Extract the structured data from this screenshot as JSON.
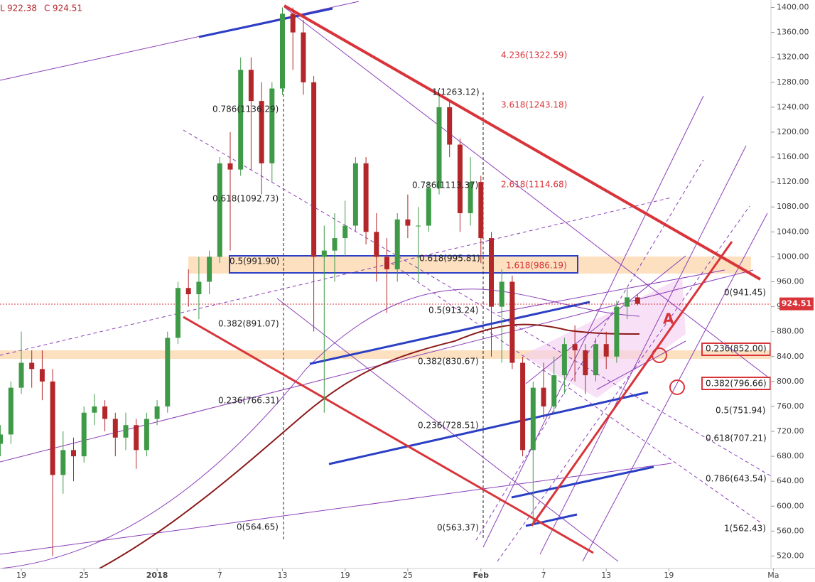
{
  "chart_data": {
    "type": "candlestick",
    "readout": [
      {
        "label": "L",
        "value": 922.38
      },
      {
        "label": "C",
        "value": 924.51
      }
    ],
    "categories": [
      null,
      null,
      "19",
      null,
      null,
      null,
      null,
      null,
      "25",
      null,
      null,
      null,
      null,
      null,
      null,
      "2018",
      null,
      null,
      null,
      null,
      null,
      "7",
      null,
      null,
      null,
      null,
      null,
      "13",
      null,
      null,
      null,
      null,
      null,
      "19",
      null,
      null,
      null,
      null,
      null,
      "25",
      null,
      null,
      null,
      null,
      null,
      null,
      "Feb",
      null,
      null,
      null,
      null,
      null,
      "7",
      null,
      null,
      null,
      null,
      null,
      "13",
      null,
      null,
      null,
      null,
      null,
      "19",
      null,
      null,
      null,
      null,
      null,
      null,
      null,
      null,
      null,
      "Ma"
    ],
    "open": [
      700,
      715,
      790,
      830,
      820,
      800,
      650,
      690,
      680,
      750,
      760,
      740,
      710,
      730,
      690,
      740,
      760,
      870,
      950,
      940,
      960,
      1000,
      1150,
      1140,
      1300,
      1250,
      1150,
      1270,
      1390,
      1360,
      1280,
      1000,
      1010,
      1030,
      1050,
      1150,
      1040,
      1000,
      980,
      1060,
      1050,
      1050,
      1110,
      1240,
      1180,
      1070,
      1120,
      1030,
      920,
      960,
      830,
      690,
      790,
      760,
      810,
      860,
      850,
      810,
      860,
      840,
      920,
      935,
      null,
      null,
      null,
      null,
      null,
      null,
      null,
      null,
      null,
      null,
      null,
      null,
      null
    ],
    "high": [
      730,
      800,
      880,
      850,
      850,
      820,
      720,
      710,
      760,
      780,
      770,
      750,
      750,
      740,
      750,
      770,
      880,
      960,
      980,
      1000,
      1010,
      1160,
      1200,
      1320,
      1320,
      1280,
      1280,
      1400,
      1400,
      1380,
      1290,
      1050,
      1070,
      1090,
      1160,
      1160,
      1070,
      1030,
      1070,
      1100,
      1080,
      1120,
      1260,
      1250,
      1190,
      1160,
      1130,
      1040,
      980,
      970,
      840,
      800,
      830,
      840,
      870,
      890,
      860,
      870,
      880,
      930,
      950,
      940,
      null,
      null,
      null,
      null,
      null,
      null,
      null,
      null,
      null,
      null,
      null,
      null,
      null
    ],
    "low": [
      680,
      700,
      780,
      790,
      770,
      520,
      620,
      640,
      670,
      730,
      720,
      680,
      690,
      660,
      680,
      730,
      750,
      860,
      920,
      900,
      940,
      990,
      1010,
      1130,
      1140,
      1100,
      1120,
      1260,
      1300,
      1260,
      880,
      750,
      960,
      1000,
      1040,
      1020,
      960,
      910,
      960,
      1030,
      960,
      1040,
      1100,
      1160,
      1040,
      1050,
      990,
      840,
      830,
      820,
      680,
      570,
      740,
      750,
      780,
      800,
      780,
      800,
      820,
      830,
      900,
      922.38,
      null,
      null,
      null,
      null,
      null,
      null,
      null,
      null,
      null,
      null,
      null,
      null,
      null
    ],
    "close": [
      715,
      790,
      830,
      820,
      800,
      650,
      690,
      680,
      750,
      760,
      740,
      710,
      730,
      690,
      740,
      760,
      870,
      950,
      940,
      960,
      1000,
      1150,
      1140,
      1300,
      1250,
      1150,
      1270,
      1390,
      1360,
      1280,
      1000,
      1010,
      1030,
      1050,
      1150,
      1040,
      1000,
      980,
      1060,
      1050,
      1050,
      1110,
      1240,
      1180,
      1070,
      1120,
      1030,
      920,
      960,
      830,
      690,
      790,
      760,
      810,
      860,
      850,
      810,
      860,
      840,
      920,
      935,
      924.51,
      null,
      null,
      null,
      null,
      null,
      null,
      null,
      null,
      null,
      null,
      null,
      null,
      null
    ],
    "up_color": "#3f9a48",
    "down_color": "#b3262a",
    "last_price": 924.51,
    "ylim": [
      500,
      1412
    ],
    "yticks": [
      {
        "value": 520,
        "label": "520.00"
      },
      {
        "value": 560,
        "label": "560.00"
      },
      {
        "value": 600,
        "label": "600.00"
      },
      {
        "value": 640,
        "label": "640.00"
      },
      {
        "value": 680,
        "label": "680.00"
      },
      {
        "value": 720,
        "label": "720.00"
      },
      {
        "value": 760,
        "label": "760.00"
      },
      {
        "value": 800,
        "label": "800.00"
      },
      {
        "value": 840,
        "label": "840.00"
      },
      {
        "value": 880,
        "label": "880.00"
      },
      {
        "value": 920,
        "label": "920.00"
      },
      {
        "value": 960,
        "label": "960.00"
      },
      {
        "value": 1000,
        "label": "1000.00"
      },
      {
        "value": 1040,
        "label": "1040.00"
      },
      {
        "value": 1080,
        "label": "1080.00"
      },
      {
        "value": 1120,
        "label": "1120.00"
      },
      {
        "value": 1160,
        "label": "1160.00"
      },
      {
        "value": 1200,
        "label": "1200.00"
      },
      {
        "value": 1240,
        "label": "1240.00"
      },
      {
        "value": 1280,
        "label": "1280.00"
      },
      {
        "value": 1320,
        "label": "1320.00"
      },
      {
        "value": 1360,
        "label": "1360.00"
      },
      {
        "value": 1400,
        "label": "1400.00"
      }
    ],
    "annotations": [
      {
        "text": "4.236(1322.59)",
        "color": "#d8343a"
      },
      {
        "text": "3.618(1243.18)",
        "color": "#d8343a"
      },
      {
        "text": "2.618(1114.68)",
        "color": "#d8343a"
      },
      {
        "text": "1.618(986.19)",
        "color": "#d8343a"
      },
      {
        "text": "1(1263.12)",
        "color": "#222222"
      },
      {
        "text": "0.786(1113.37)",
        "color": "#222222"
      },
      {
        "text": "0.618(995.81)",
        "color": "#222222"
      },
      {
        "text": "0.5(913.24)",
        "color": "#222222"
      },
      {
        "text": "0.382(830.67)",
        "color": "#222222"
      },
      {
        "text": "0.236(728.51)",
        "color": "#222222"
      },
      {
        "text": "0(563.37)",
        "color": "#222222"
      },
      {
        "text": "0.786(1136.29)",
        "color": "#222222"
      },
      {
        "text": "0.618(1092.73)",
        "color": "#222222"
      },
      {
        "text": "0.5(991.90)",
        "color": "#222222"
      },
      {
        "text": "0.382(891.07)",
        "color": "#222222"
      },
      {
        "text": "0.236(766.31)",
        "color": "#222222"
      },
      {
        "text": "0(564.65)",
        "color": "#222222"
      },
      {
        "text": "0(941.45)",
        "color": "#222222"
      },
      {
        "text": "0.236(852.00)",
        "color": "#222222"
      },
      {
        "text": "0.382(796.66)",
        "color": "#222222"
      },
      {
        "text": "0.5(751.94)",
        "color": "#222222"
      },
      {
        "text": "0.618(707.21)",
        "color": "#222222"
      },
      {
        "text": "0.786(643.54)",
        "color": "#222222"
      },
      {
        "text": "1(562.43)",
        "color": "#222222"
      },
      {
        "text": "A",
        "color": "#d8343a"
      }
    ]
  }
}
